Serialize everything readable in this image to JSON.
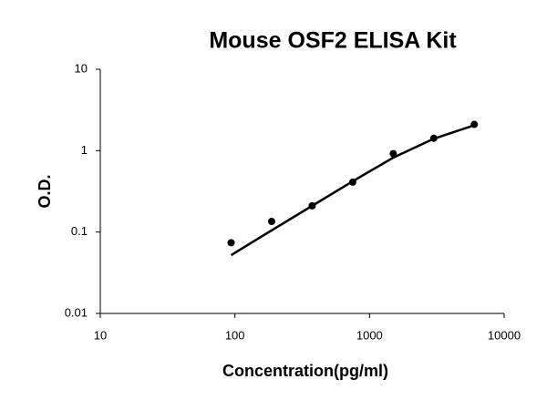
{
  "chart_data": {
    "type": "scatter",
    "title": "Mouse OSF2 ELISA Kit",
    "x_label": "Concentration(pg/ml)",
    "y_label": "O.D.",
    "x": [
      93.75,
      187.5,
      375,
      750,
      1500,
      3000,
      6000
    ],
    "series": [
      {
        "type": "scatter",
        "color": "#000000",
        "values": [
          0.074,
          0.135,
          0.21,
          0.41,
          0.92,
          1.42,
          2.1
        ]
      },
      {
        "type": "line",
        "color": "#000000",
        "values": [
          0.052,
          0.105,
          0.21,
          0.42,
          0.82,
          1.4,
          2.05
        ]
      }
    ],
    "xlim": [
      10,
      10000
    ],
    "xticks": [
      10,
      100,
      1000,
      10000
    ],
    "ylim": [
      0.01,
      10
    ],
    "yticks": [
      0.01,
      0.1,
      1,
      10
    ],
    "xlog": true,
    "ylog": true,
    "grid": false
  }
}
